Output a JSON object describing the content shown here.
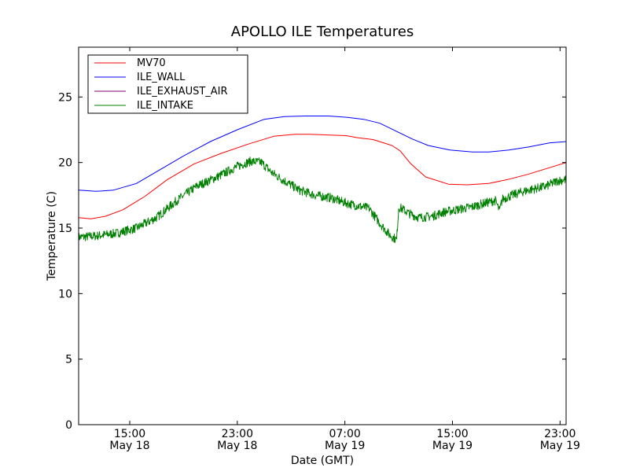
{
  "chart_data": {
    "type": "line",
    "title": "APOLLO ILE Temperatures",
    "xlabel": "Date (GMT)",
    "ylabel": "Temperature (C)",
    "xlim": [
      11.2,
      47.45
    ],
    "ylim": [
      0,
      28.8
    ],
    "x_unit": "hours since May 18 00:00 GMT",
    "x_ticks": [
      {
        "x": 15,
        "time": "15:00",
        "date": "May 18"
      },
      {
        "x": 23,
        "time": "23:00",
        "date": "May 18"
      },
      {
        "x": 31,
        "time": "07:00",
        "date": "May 19"
      },
      {
        "x": 39,
        "time": "15:00",
        "date": "May 19"
      },
      {
        "x": 47,
        "time": "23:00",
        "date": "May 19"
      }
    ],
    "y_ticks": [
      0,
      5,
      10,
      15,
      20,
      25
    ],
    "grid": false,
    "legend": "top-left",
    "series": [
      {
        "name": "MV70",
        "color": "#ff0000",
        "x": [
          11.2,
          12.1,
          13.2,
          14.5,
          16.1,
          17.8,
          19.8,
          21.8,
          23.8,
          25.7,
          27.3,
          28.4,
          29.9,
          31.1,
          31.9,
          33.1,
          34.5,
          35.1,
          35.9,
          37.0,
          38.7,
          40.1,
          41.7,
          43.1,
          44.6,
          46.2,
          47.45
        ],
        "values": [
          15.8,
          15.7,
          15.9,
          16.4,
          17.4,
          18.7,
          19.9,
          20.7,
          21.4,
          22.0,
          22.15,
          22.15,
          22.1,
          22.05,
          21.9,
          21.75,
          21.3,
          20.9,
          19.9,
          18.9,
          18.35,
          18.3,
          18.4,
          18.7,
          19.1,
          19.6,
          20.0
        ]
      },
      {
        "name": "ILE_WALL",
        "color": "#0000ff",
        "x": [
          11.2,
          12.5,
          13.8,
          15.5,
          17.0,
          19.0,
          21.0,
          23.0,
          25.0,
          26.5,
          28.0,
          29.8,
          31.2,
          32.4,
          33.6,
          34.8,
          36.0,
          37.2,
          38.8,
          40.5,
          41.7,
          43.2,
          44.7,
          46.2,
          47.45
        ],
        "values": [
          17.9,
          17.8,
          17.9,
          18.4,
          19.3,
          20.5,
          21.6,
          22.5,
          23.3,
          23.5,
          23.55,
          23.55,
          23.45,
          23.3,
          23.0,
          22.4,
          21.8,
          21.3,
          20.95,
          20.8,
          20.8,
          20.95,
          21.2,
          21.5,
          21.6
        ]
      },
      {
        "name": "ILE_EXHAUST_AIR",
        "color": "#800080",
        "x": [],
        "values": []
      },
      {
        "name": "ILE_INTAKE",
        "color": "#008000",
        "noise": 0.35,
        "x": [
          11.2,
          12.5,
          14.0,
          15.5,
          17.0,
          18.5,
          20.0,
          21.5,
          23.0,
          24.0,
          24.8,
          25.6,
          26.5,
          27.6,
          28.8,
          30.0,
          30.8,
          31.5,
          32.8,
          33.5,
          34.3,
          34.85,
          35.0,
          35.2,
          35.8,
          36.5,
          37.5,
          38.3,
          39.3,
          40.4,
          41.4,
          42.2,
          42.5,
          42.7,
          43.4,
          44.3,
          45.1,
          46.0,
          46.8,
          47.45
        ],
        "values": [
          14.3,
          14.4,
          14.6,
          15.0,
          15.8,
          17.1,
          18.2,
          18.9,
          19.7,
          20.1,
          20.0,
          19.2,
          18.6,
          17.9,
          17.5,
          17.3,
          17.0,
          16.8,
          16.5,
          15.5,
          14.5,
          14.1,
          16.6,
          16.5,
          16.1,
          15.8,
          15.9,
          16.2,
          16.4,
          16.6,
          16.9,
          17.1,
          16.3,
          17.2,
          17.5,
          17.8,
          18.0,
          18.2,
          18.6,
          18.7
        ]
      }
    ]
  }
}
